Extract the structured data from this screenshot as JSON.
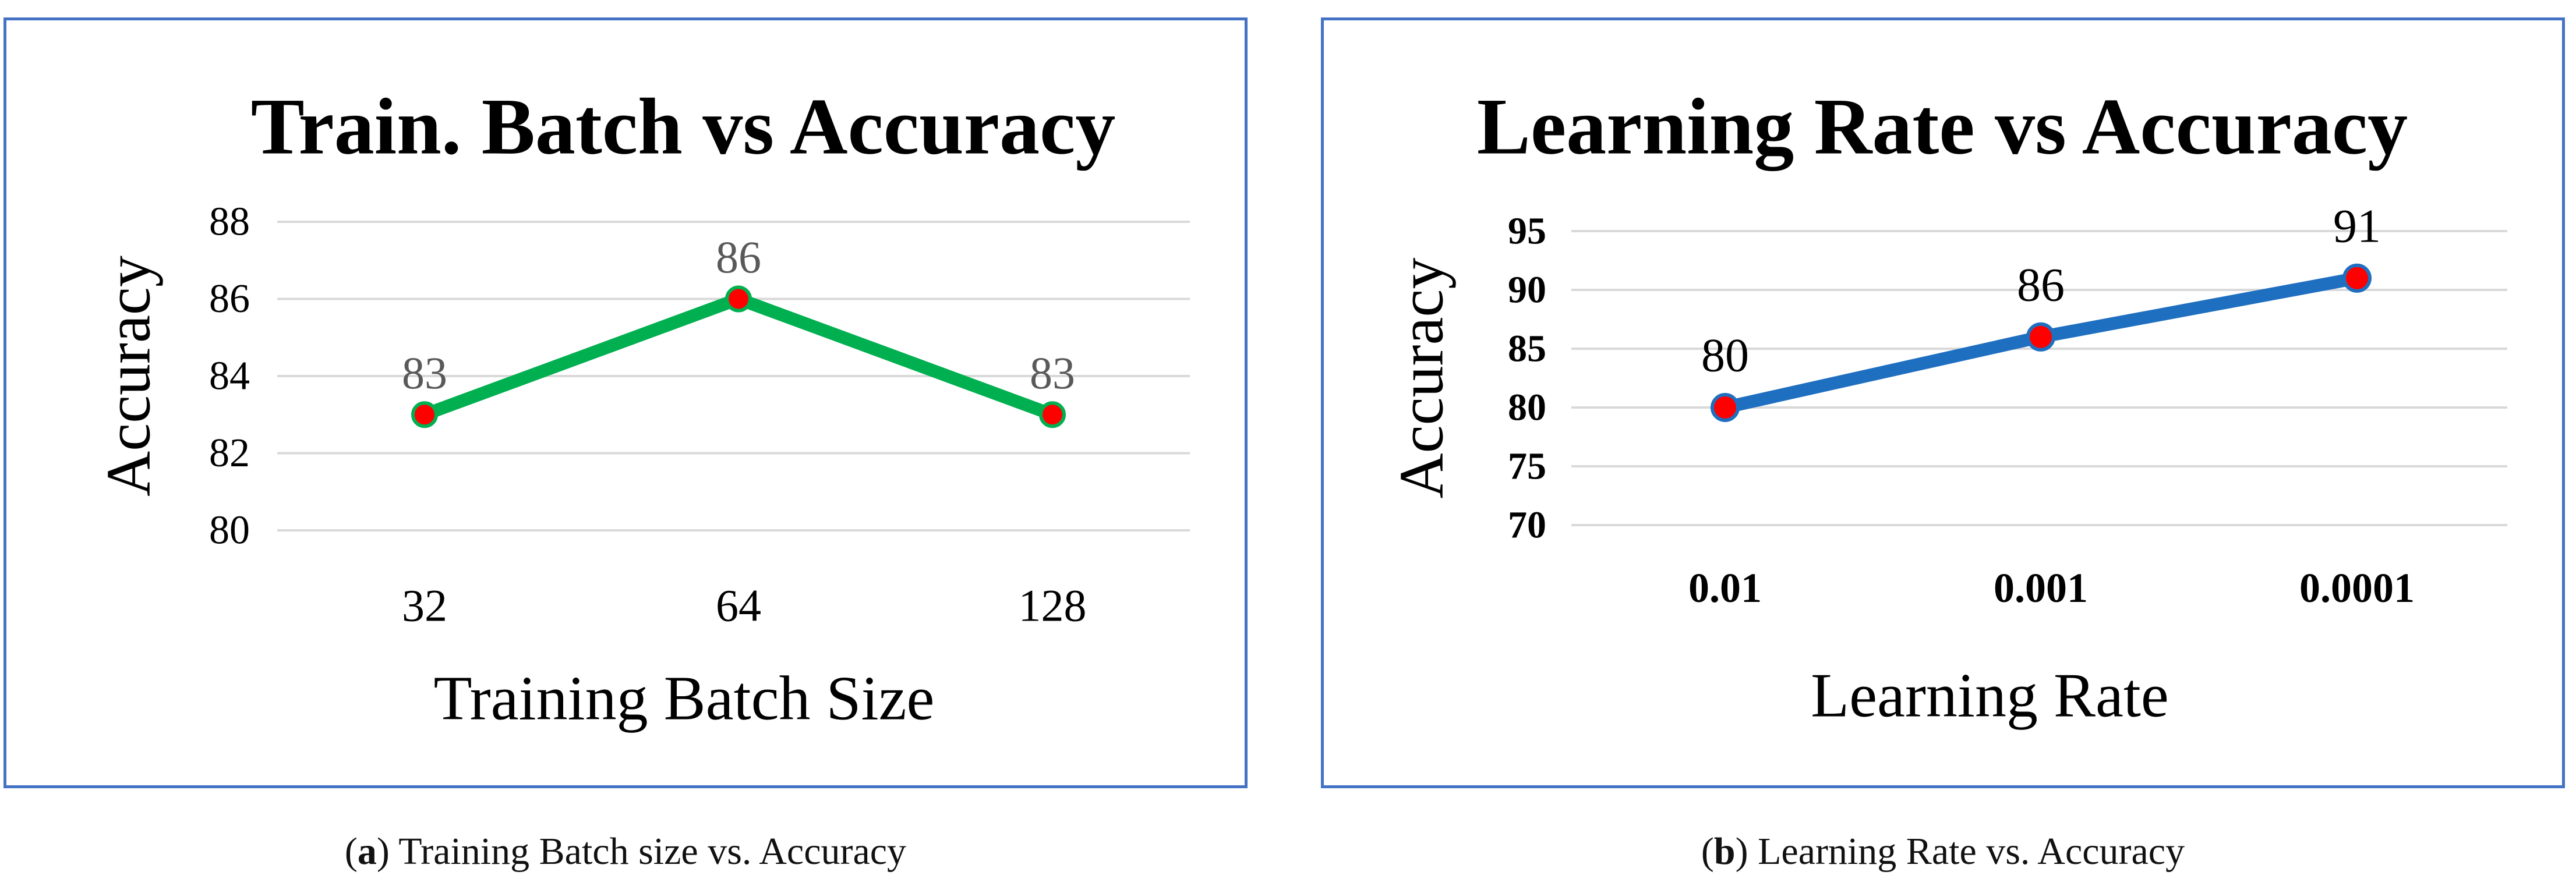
{
  "colors": {
    "frame": "#4472c4",
    "grid": "#d9d9d9",
    "marker": "#ff0000",
    "text": "#000000",
    "label_gray": "#595959"
  },
  "captions": [
    {
      "prefix": "(",
      "letter": "a",
      "suffix": ")",
      "text": " Training Batch size vs. Accuracy"
    },
    {
      "prefix": "(",
      "letter": "b",
      "suffix": ")",
      "text": " Learning Rate vs. Accuracy"
    }
  ],
  "chart_data": [
    {
      "type": "line",
      "title": "Train. Batch vs Accuracy",
      "xlabel": "Training Batch Size",
      "ylabel": "Accuracy",
      "categories": [
        "32",
        "64",
        "128"
      ],
      "values": [
        83,
        86,
        83
      ],
      "data_labels": [
        "83",
        "86",
        "83"
      ],
      "ylim": [
        80,
        88
      ],
      "yticks": [
        "80",
        "82",
        "84",
        "86",
        "88"
      ],
      "ytick_values": [
        80,
        82,
        84,
        86,
        88
      ],
      "grid": true,
      "line_color": "#00b050",
      "marker_color": "#ff0000"
    },
    {
      "type": "line",
      "title": "Learning Rate vs Accuracy",
      "xlabel": "Learning Rate",
      "ylabel": "Accuracy",
      "categories": [
        "0.01",
        "0.001",
        "0.0001"
      ],
      "values": [
        80,
        86,
        91
      ],
      "data_labels": [
        "80",
        "86",
        "91"
      ],
      "ylim": [
        70,
        95
      ],
      "yticks": [
        "70",
        "75",
        "80",
        "85",
        "90",
        "95"
      ],
      "ytick_values": [
        70,
        75,
        80,
        85,
        90,
        95
      ],
      "grid": true,
      "line_color": "#1f6fc0",
      "marker_color": "#ff0000"
    }
  ]
}
